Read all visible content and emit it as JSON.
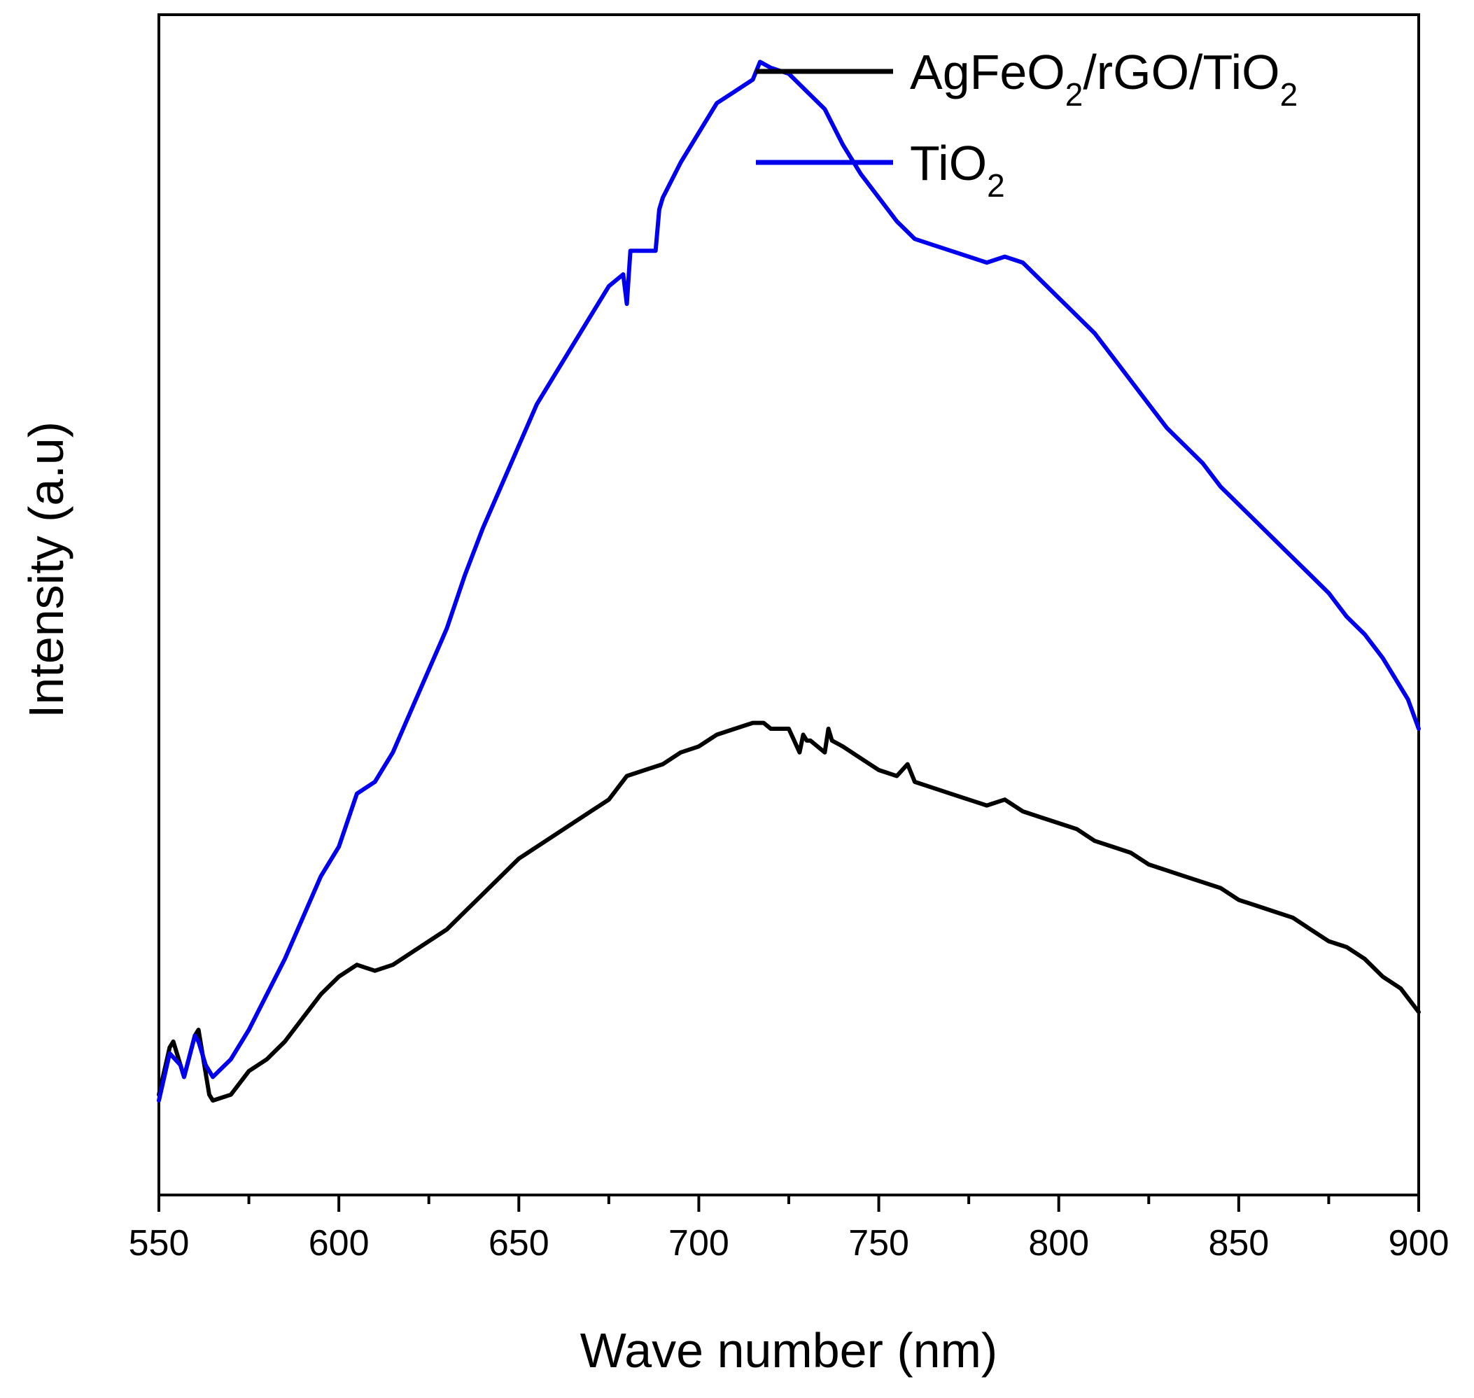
{
  "chart_data": {
    "type": "line",
    "title": "",
    "xlabel": "Wave number (nm)",
    "ylabel": "Intensity (a.u)",
    "xlim": [
      550,
      900
    ],
    "ylim": [
      0,
      100
    ],
    "y_ticks_labeled": false,
    "x_ticks": [
      550,
      600,
      650,
      700,
      750,
      800,
      850,
      900
    ],
    "x_tick_labels": [
      "550",
      "600",
      "650",
      "700",
      "750",
      "800",
      "850",
      "900"
    ],
    "x_minor_ticks": [
      575,
      625,
      675,
      725,
      775,
      825,
      875
    ],
    "grid": false,
    "legend_position": "top-right",
    "series": [
      {
        "name": "AgFeO2/rGO/TiO2",
        "label_parts": [
          [
            "AgFeO",
            false
          ],
          [
            "2",
            true
          ],
          [
            "/rGO/TiO",
            false
          ],
          [
            "2",
            true
          ]
        ],
        "color": "#000000",
        "x": [
          550,
          553,
          554,
          557,
          560,
          561,
          564,
          565,
          570,
          575,
          580,
          585,
          590,
          595,
          600,
          605,
          610,
          615,
          620,
          625,
          630,
          635,
          640,
          645,
          650,
          655,
          660,
          665,
          670,
          675,
          680,
          685,
          690,
          695,
          700,
          705,
          710,
          715,
          718,
          720,
          725,
          728,
          729,
          730,
          731,
          735,
          736,
          737,
          740,
          745,
          750,
          755,
          758,
          760,
          765,
          770,
          775,
          780,
          785,
          790,
          795,
          800,
          805,
          810,
          815,
          820,
          825,
          830,
          835,
          840,
          845,
          850,
          855,
          860,
          865,
          870,
          875,
          880,
          885,
          890,
          895,
          900
        ],
        "values": [
          8.5,
          12.5,
          13.0,
          10.0,
          13.5,
          14.0,
          8.5,
          8.0,
          8.5,
          10.5,
          11.5,
          13.0,
          15.0,
          17.0,
          18.5,
          19.5,
          19.0,
          19.5,
          20.5,
          21.5,
          22.5,
          24.0,
          25.5,
          27.0,
          28.5,
          29.5,
          30.5,
          31.5,
          32.5,
          33.5,
          35.5,
          36.0,
          36.5,
          37.5,
          38.0,
          39.0,
          39.5,
          40.0,
          40.0,
          39.5,
          39.5,
          37.5,
          39.0,
          38.5,
          38.5,
          37.5,
          39.5,
          38.5,
          38.0,
          37.0,
          36.0,
          35.5,
          36.5,
          35.0,
          34.5,
          34.0,
          33.5,
          33.0,
          33.5,
          32.5,
          32.0,
          31.5,
          31.0,
          30.0,
          29.5,
          29.0,
          28.0,
          27.5,
          27.0,
          26.5,
          26.0,
          25.0,
          24.5,
          24.0,
          23.5,
          22.5,
          21.5,
          21.0,
          20.0,
          18.5,
          17.5,
          15.5
        ]
      },
      {
        "name": "TiO2",
        "label_parts": [
          [
            "TiO",
            false
          ],
          [
            "2",
            true
          ]
        ],
        "color": "#0000ee",
        "x": [
          550,
          553,
          556,
          557,
          560,
          561,
          563,
          565,
          570,
          575,
          580,
          585,
          590,
          595,
          600,
          605,
          610,
          615,
          620,
          625,
          630,
          635,
          640,
          645,
          650,
          655,
          660,
          665,
          670,
          675,
          679,
          680,
          681,
          682,
          688,
          689,
          690,
          695,
          700,
          705,
          710,
          715,
          717,
          720,
          725,
          730,
          735,
          740,
          745,
          750,
          755,
          760,
          765,
          770,
          775,
          780,
          785,
          790,
          795,
          800,
          805,
          810,
          815,
          820,
          825,
          830,
          835,
          840,
          845,
          850,
          855,
          860,
          865,
          870,
          875,
          880,
          885,
          890,
          895,
          897,
          900
        ],
        "values": [
          8.0,
          12.0,
          11.0,
          10.0,
          13.5,
          13.0,
          11.0,
          10.0,
          11.5,
          14.0,
          17.0,
          20.0,
          23.5,
          27.0,
          29.5,
          34.0,
          35.0,
          37.5,
          41.0,
          44.5,
          48.0,
          52.5,
          56.5,
          60.0,
          63.5,
          67.0,
          69.5,
          72.0,
          74.5,
          77.0,
          78.0,
          75.5,
          80.0,
          80.0,
          80.0,
          83.5,
          84.5,
          87.5,
          90.0,
          92.5,
          93.5,
          94.5,
          96.0,
          95.5,
          95.0,
          93.5,
          92.0,
          89.0,
          86.5,
          84.5,
          82.5,
          81.0,
          80.5,
          80.0,
          79.5,
          79.0,
          79.5,
          79.0,
          77.5,
          76.0,
          74.5,
          73.0,
          71.0,
          69.0,
          67.0,
          65.0,
          63.5,
          62.0,
          60.0,
          58.5,
          57.0,
          55.5,
          54.0,
          52.5,
          51.0,
          49.0,
          47.5,
          45.5,
          43.0,
          42.0,
          39.5
        ]
      }
    ]
  }
}
